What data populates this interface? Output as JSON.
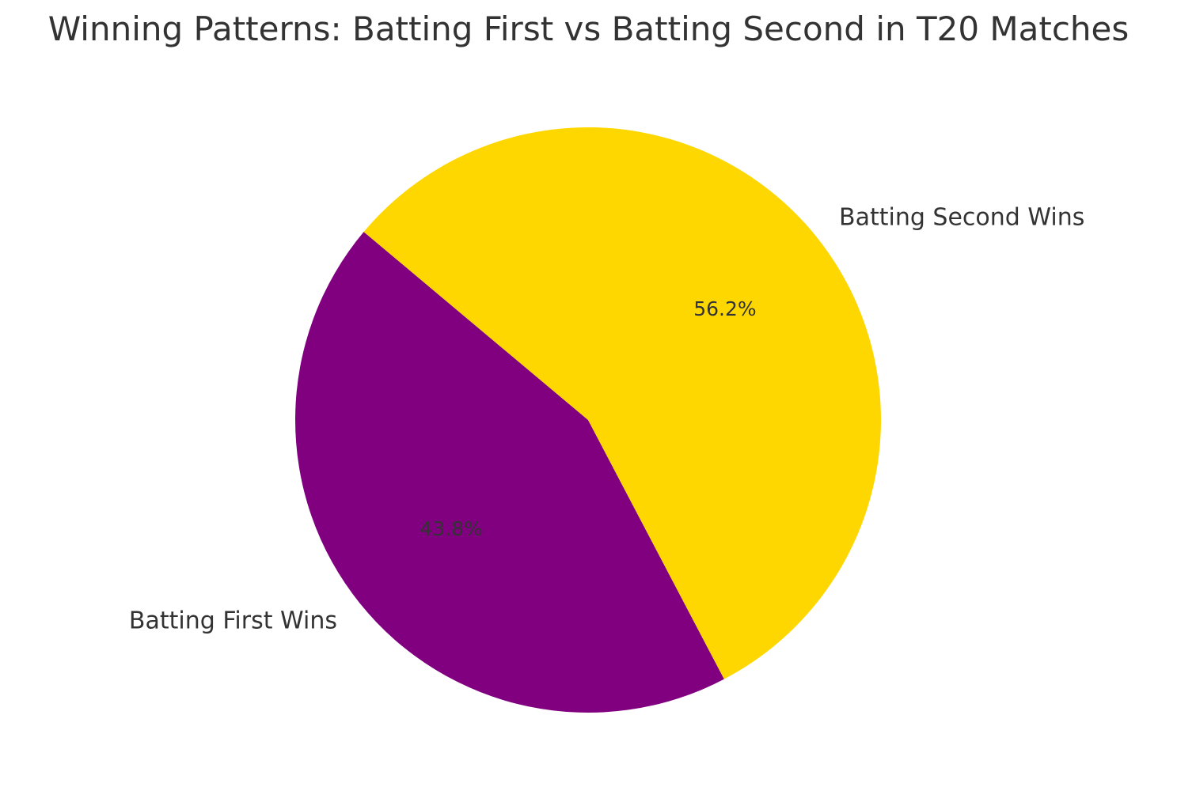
{
  "chart_data": {
    "type": "pie",
    "title": "Winning Patterns: Batting First vs Batting Second in T20 Matches",
    "slices": [
      {
        "label": "Batting First Wins",
        "value": 43.8,
        "pct_label": "43.8%",
        "color": "#800080"
      },
      {
        "label": "Batting Second Wins",
        "value": 56.2,
        "pct_label": "56.2%",
        "color": "#FFD700"
      }
    ],
    "start_angle_deg": 140,
    "direction": "counterclockwise",
    "legend": "none"
  }
}
